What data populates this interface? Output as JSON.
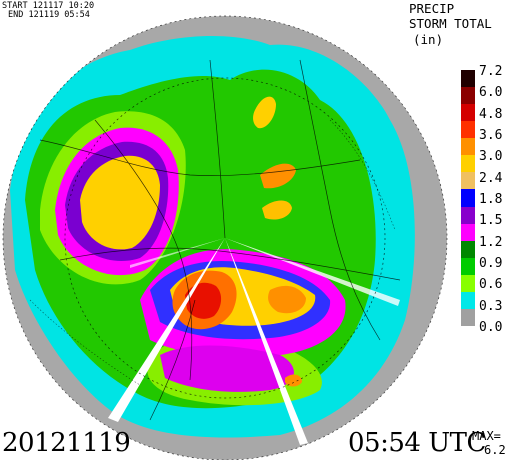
{
  "header": {
    "start_label": "START",
    "start_value": "121117 10:20",
    "end_label": "END",
    "end_value": "121119 05:54"
  },
  "product": {
    "line1": "PRECIP",
    "line2": "STORM TOTAL",
    "units": "(in)"
  },
  "scale": {
    "ticks": [
      "7.2",
      "6.0",
      "4.8",
      "3.6",
      "3.0",
      "2.4",
      "1.8",
      "1.5",
      "1.2",
      "0.9",
      "0.6",
      "0.3",
      "0.0"
    ],
    "colors": [
      "#200000",
      "#8b0000",
      "#d40000",
      "#ff3000",
      "#ff9000",
      "#ffd000",
      "#f0c060",
      "#0000ff",
      "#8800cc",
      "#ff00ff",
      "#008800",
      "#00cc00",
      "#88ff00",
      "#00e8e8",
      "#a0a0a0"
    ]
  },
  "footer": {
    "date": "20121119",
    "time": "05:54 UTC",
    "max_label": "MAX=",
    "max_value": "6.2"
  }
}
